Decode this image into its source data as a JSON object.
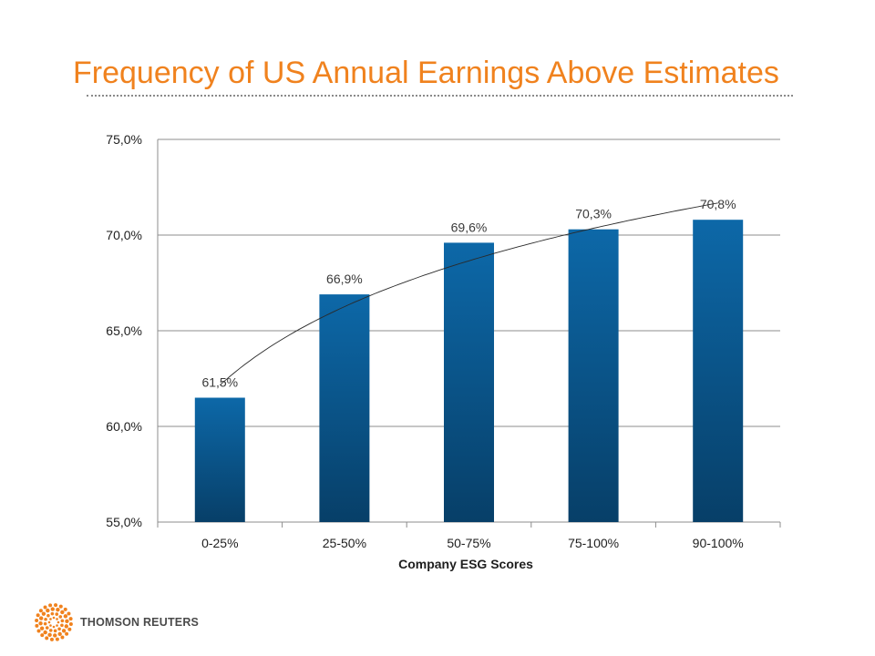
{
  "title": "Frequency of US Annual Earnings Above Estimates",
  "footer": {
    "logo_text": "THOMSON REUTERS",
    "logo_icon": "starburst-logo-icon",
    "logo_color": "#f0821e"
  },
  "chart_data": {
    "type": "bar",
    "categories": [
      "0-25%",
      "25-50%",
      "50-75%",
      "75-100%",
      "90-100%"
    ],
    "values": [
      61.5,
      66.9,
      69.6,
      70.3,
      70.8
    ],
    "data_labels": [
      "61,5%",
      "66,9%",
      "69,6%",
      "70,3%",
      "70,8%"
    ],
    "xlabel": "Company ESG Scores",
    "ylabel": "",
    "ylim": [
      55.0,
      75.0
    ],
    "yticks": [
      55.0,
      60.0,
      65.0,
      70.0,
      75.0
    ],
    "ytick_labels": [
      "55,0%",
      "60,0%",
      "65,0%",
      "70,0%",
      "75,0%"
    ],
    "grid": true,
    "legend": "none",
    "trendline": "logarithmic",
    "bar_color_top": "#0d68a8",
    "bar_color_bottom": "#073f68",
    "trendline_color": "#2a2a2a"
  }
}
